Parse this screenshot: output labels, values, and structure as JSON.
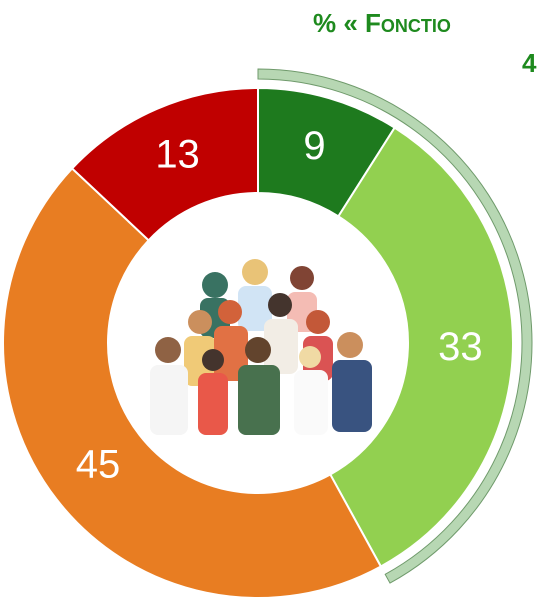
{
  "chart_data": {
    "type": "donut",
    "title": "% « Fonctio",
    "subtitle": "4",
    "values": [
      9,
      33,
      45,
      13
    ],
    "colors": [
      "#1e7a1e",
      "#92d050",
      "#e87d22",
      "#c00000"
    ],
    "bracket_color": "#b7d7b3"
  }
}
